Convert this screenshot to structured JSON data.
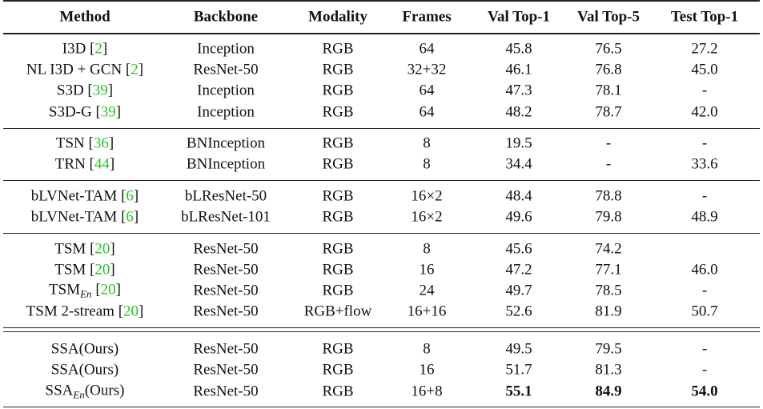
{
  "table": {
    "header": [
      "Method",
      "Backbone",
      "Modality",
      "Frames",
      "Val Top-1",
      "Val Top-5",
      "Test Top-1"
    ],
    "groups": [
      [
        {
          "cells": [
            [
              {
                "t": "I3D ["
              },
              {
                "t": "2",
                "cite": true
              },
              {
                "t": "]"
              }
            ],
            "Inception",
            "RGB",
            "64",
            "45.8",
            "76.5",
            "27.2"
          ]
        },
        {
          "cells": [
            [
              {
                "t": "NL I3D + GCN ["
              },
              {
                "t": "2",
                "cite": true
              },
              {
                "t": "]"
              }
            ],
            "ResNet-50",
            "RGB",
            "32+32",
            "46.1",
            "76.8",
            "45.0"
          ]
        },
        {
          "cells": [
            [
              {
                "t": "S3D ["
              },
              {
                "t": "39",
                "cite": true
              },
              {
                "t": "]"
              }
            ],
            "Inception",
            "RGB",
            "64",
            "47.3",
            "78.1",
            "-"
          ]
        },
        {
          "cells": [
            [
              {
                "t": "S3D-G ["
              },
              {
                "t": "39",
                "cite": true
              },
              {
                "t": "]"
              }
            ],
            "Inception",
            "RGB",
            "64",
            "48.2",
            "78.7",
            "42.0"
          ]
        }
      ],
      [
        {
          "cells": [
            [
              {
                "t": "TSN ["
              },
              {
                "t": "36",
                "cite": true
              },
              {
                "t": "]"
              }
            ],
            "BNInception",
            "RGB",
            "8",
            "19.5",
            "-",
            "-"
          ]
        },
        {
          "cells": [
            [
              {
                "t": "TRN ["
              },
              {
                "t": "44",
                "cite": true
              },
              {
                "t": "]"
              }
            ],
            "BNInception",
            "RGB",
            "8",
            "34.4",
            "-",
            "33.6"
          ]
        }
      ],
      [
        {
          "cells": [
            [
              {
                "t": "bLVNet-TAM ["
              },
              {
                "t": "6",
                "cite": true
              },
              {
                "t": "]"
              }
            ],
            "bLResNet-50",
            "RGB",
            "16×2",
            "48.4",
            "78.8",
            "-"
          ]
        },
        {
          "cells": [
            [
              {
                "t": "bLVNet-TAM ["
              },
              {
                "t": "6",
                "cite": true
              },
              {
                "t": "]"
              }
            ],
            "bLResNet-101",
            "RGB",
            "16×2",
            "49.6",
            "79.8",
            "48.9"
          ]
        }
      ],
      [
        {
          "cells": [
            [
              {
                "t": "TSM ["
              },
              {
                "t": "20",
                "cite": true
              },
              {
                "t": "]"
              }
            ],
            "ResNet-50",
            "RGB",
            "8",
            "45.6",
            "74.2",
            null
          ]
        },
        {
          "cells": [
            [
              {
                "t": "TSM ["
              },
              {
                "t": "20",
                "cite": true
              },
              {
                "t": "]"
              }
            ],
            "ResNet-50",
            "RGB",
            "16",
            "47.2",
            "77.1",
            "46.0"
          ]
        },
        {
          "cells": [
            [
              {
                "t": "TSM"
              },
              {
                "t": "En",
                "sub": true
              },
              {
                "t": " ["
              },
              {
                "t": "20",
                "cite": true
              },
              {
                "t": "]"
              }
            ],
            "ResNet-50",
            "RGB",
            "24",
            "49.7",
            "78.5",
            "-"
          ]
        },
        {
          "cells": [
            [
              {
                "t": "TSM 2-stream ["
              },
              {
                "t": "20",
                "cite": true
              },
              {
                "t": "]"
              }
            ],
            "ResNet-50",
            "RGB+flow",
            "16+16",
            "52.6",
            "81.9",
            "50.7"
          ]
        }
      ],
      [
        {
          "cells": [
            [
              {
                "t": "SSA(Ours)"
              }
            ],
            "ResNet-50",
            "RGB",
            "8",
            "49.5",
            "79.5",
            "-"
          ]
        },
        {
          "cells": [
            [
              {
                "t": "SSA(Ours)"
              }
            ],
            "ResNet-50",
            "RGB",
            "16",
            "51.7",
            "81.3",
            "-"
          ]
        },
        {
          "cells": [
            [
              {
                "t": "SSA"
              },
              {
                "t": "En",
                "sub": true
              },
              {
                "t": "(Ours)"
              }
            ],
            "ResNet-50",
            "RGB",
            "16+8",
            {
              "t": "55.1",
              "bold": true
            },
            {
              "t": "84.9",
              "bold": true
            },
            {
              "t": "54.0",
              "bold": true
            }
          ]
        }
      ]
    ]
  }
}
